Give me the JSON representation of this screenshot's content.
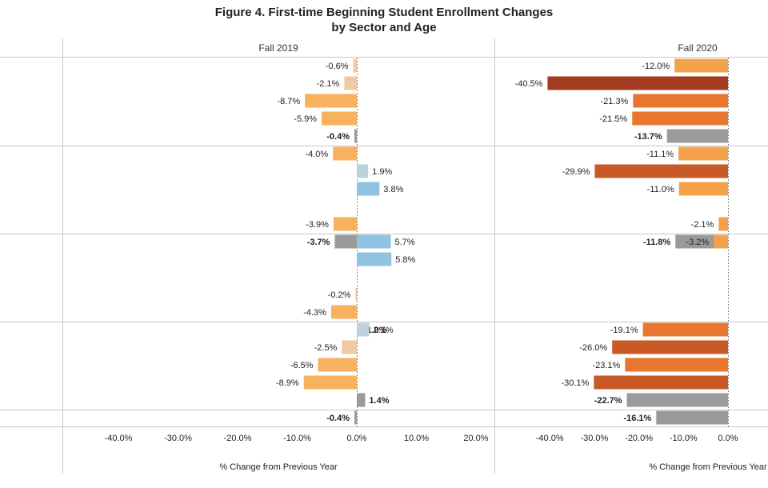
{
  "title": [
    "Figure 4. First-time Beginning Student Enrollment Changes",
    "by Sector and Age"
  ],
  "chart_data": {
    "type": "bar",
    "orientation": "horizontal",
    "title": "Figure 4. First-time Beginning Student Enrollment Changes by Sector and Age",
    "xlabel": "% Change from Previous Year",
    "xlim": [
      -50,
      25
    ],
    "x_ticks": [
      "-40.0%",
      "-30.0%",
      "-20.0%",
      "-10.0%",
      "0.0%",
      "10.0%",
      "20.0%"
    ],
    "x_tick_values": [
      -40,
      -30,
      -20,
      -10,
      0,
      10,
      20
    ],
    "panels": [
      {
        "name": "Fall 2019",
        "groups": [
          {
            "values": [
              -0.6,
              -2.1,
              -8.7,
              -5.9,
              -0.4
            ],
            "labels": [
              "-0.6%",
              "-2.1%",
              "-8.7%",
              "-5.9%",
              "-0.4%"
            ]
          },
          {
            "values": [
              -4.0,
              1.9,
              3.8,
              null,
              -3.9,
              -3.7
            ],
            "labels": [
              "-4.0%",
              "1.9%",
              "3.8%",
              "",
              "-3.9%",
              "-3.7%"
            ]
          },
          {
            "values": [
              5.7,
              5.8,
              null,
              -0.2,
              -4.3,
              1.0
            ],
            "labels": [
              "5.7%",
              "5.8%",
              "",
              "-0.2%",
              "-4.3%",
              "1.0%"
            ]
          },
          {
            "values": [
              2.1,
              -2.5,
              -6.5,
              -8.9,
              1.4
            ],
            "labels": [
              "2.1%",
              "-2.5%",
              "-6.5%",
              "-8.9%",
              "1.4%"
            ]
          },
          {
            "values": [
              -0.4
            ],
            "labels": [
              "-0.4%"
            ]
          }
        ]
      },
      {
        "name": "Fall 2020",
        "groups": [
          {
            "values": [
              -12.0,
              -40.5,
              -21.3,
              -21.5,
              -13.7
            ],
            "labels": [
              "-12.0%",
              "-40.5%",
              "-21.3%",
              "-21.5%",
              "-13.7%"
            ]
          },
          {
            "values": [
              -11.1,
              -29.9,
              -11.0,
              null,
              -2.1,
              -11.8
            ],
            "labels": [
              "-11.1%",
              "-29.9%",
              "-11.0%",
              "",
              "-2.1%",
              "-11.8%"
            ]
          },
          {
            "values": [
              -3.2,
              null,
              null,
              null,
              null,
              null
            ],
            "labels": [
              "-3.2%",
              "",
              "",
              "",
              "",
              ""
            ]
          },
          {
            "values": [
              -19.1,
              -26.0,
              -23.1,
              -30.1,
              -22.7
            ],
            "labels": [
              "-19.1%",
              "-26.0%",
              "-23.1%",
              "-30.1%",
              "-22.7%"
            ]
          },
          {
            "values": [
              -16.1
            ],
            "labels": [
              "-16.1%"
            ]
          }
        ]
      }
    ],
    "grid": false,
    "colors": {
      "light_tan": "#f0c9a2",
      "light_orange": "#f8b15c",
      "orange": "#f5a14a",
      "mid_orange": "#e8762f",
      "dark_orange": "#c95a27",
      "rust": "#a33b21",
      "light_blue": "#bcd3df",
      "blue": "#8fc3df",
      "total_gray": "#9a9a9a",
      "separator": "#c8c8c8"
    }
  }
}
